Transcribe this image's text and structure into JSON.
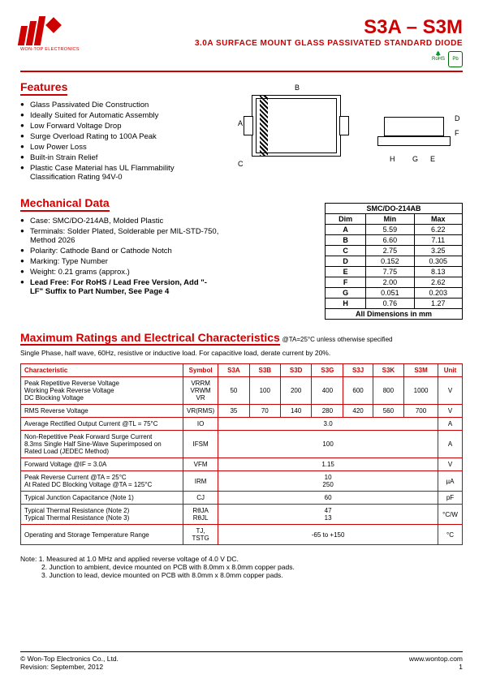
{
  "header": {
    "company": "WON-TOP ELECTRONICS",
    "title": "S3A – S3M",
    "subtitle": "3.0A SURFACE MOUNT GLASS PASSIVATED STANDARD DIODE",
    "rohs_label": "RoHS",
    "pb_label": "Pb"
  },
  "features": {
    "title": "Features",
    "items": [
      "Glass Passivated Die Construction",
      "Ideally Suited for Automatic Assembly",
      "Low Forward Voltage Drop",
      "Surge Overload Rating to 100A Peak",
      "Low Power Loss",
      "Built-in Strain Relief",
      "Plastic Case Material has UL Flammability Classification Rating 94V-0"
    ]
  },
  "mechanical": {
    "title": "Mechanical Data",
    "items": [
      "Case: SMC/DO-214AB, Molded Plastic",
      "Terminals: Solder Plated, Solderable per MIL-STD-750, Method 2026",
      "Polarity: Cathode Band or Cathode Notch",
      "Marking: Type Number",
      "Weight: 0.21 grams (approx.)"
    ],
    "lead_free": "Lead Free: For RoHS / Lead Free Version, Add \"-LF\" Suffix to Part Number, See Page 4"
  },
  "diagram": {
    "labels": {
      "A": "A",
      "B": "B",
      "C": "C",
      "D": "D",
      "E": "E",
      "F": "F",
      "G": "G",
      "H": "H"
    }
  },
  "dim_table": {
    "title": "SMC/DO-214AB",
    "header": [
      "Dim",
      "Min",
      "Max"
    ],
    "rows": [
      [
        "A",
        "5.59",
        "6.22"
      ],
      [
        "B",
        "6.60",
        "7.11"
      ],
      [
        "C",
        "2.75",
        "3.25"
      ],
      [
        "D",
        "0.152",
        "0.305"
      ],
      [
        "E",
        "7.75",
        "8.13"
      ],
      [
        "F",
        "2.00",
        "2.62"
      ],
      [
        "G",
        "0.051",
        "0.203"
      ],
      [
        "H",
        "0.76",
        "1.27"
      ]
    ],
    "footer": "All Dimensions in mm"
  },
  "ratings": {
    "title": "Maximum Ratings and Electrical Characteristics",
    "cond": "@TA=25°C unless otherwise specified",
    "sub": "Single Phase, half wave, 60Hz, resistive or inductive load. For capacitive load, derate current by 20%.",
    "columns": [
      "Characteristic",
      "Symbol",
      "S3A",
      "S3B",
      "S3D",
      "S3G",
      "S3J",
      "S3K",
      "S3M",
      "Unit"
    ],
    "rows": [
      {
        "char": "Peak Repetitive Reverse Voltage\nWorking Peak Reverse Voltage\nDC Blocking Voltage",
        "symbol": "VRRM\nVRWM\nVR",
        "vals": [
          "50",
          "100",
          "200",
          "400",
          "600",
          "800",
          "1000"
        ],
        "unit": "V"
      },
      {
        "char": "RMS Reverse Voltage",
        "symbol": "VR(RMS)",
        "vals": [
          "35",
          "70",
          "140",
          "280",
          "420",
          "560",
          "700"
        ],
        "unit": "V"
      },
      {
        "char": "Average Rectified Output Current          @TL = 75°C",
        "symbol": "IO",
        "span": "3.0",
        "unit": "A"
      },
      {
        "char": "Non-Repetitive Peak Forward Surge Current\n8.3ms Single Half Sine-Wave Superimposed on\nRated Load (JEDEC Method)",
        "symbol": "IFSM",
        "span": "100",
        "unit": "A"
      },
      {
        "char": "Forward Voltage                    @IF = 3.0A",
        "symbol": "VFM",
        "span": "1.15",
        "unit": "V"
      },
      {
        "char": "Peak Reverse Current                @TA = 25°C\nAt Rated DC Blocking Voltage          @TA = 125°C",
        "symbol": "IRM",
        "span": "10\n250",
        "unit": "µA"
      },
      {
        "char": "Typical Junction Capacitance (Note 1)",
        "symbol": "CJ",
        "span": "60",
        "unit": "pF"
      },
      {
        "char": "Typical Thermal Resistance (Note 2)\nTypical Thermal Resistance (Note 3)",
        "symbol": "RθJA\nRθJL",
        "span": "47\n13",
        "unit": "°C/W"
      },
      {
        "char": "Operating and Storage Temperature Range",
        "symbol": "TJ, TSTG",
        "span": "-65 to +150",
        "unit": "°C"
      }
    ]
  },
  "notes": {
    "label": "Note:",
    "items": [
      "1. Measured at 1.0 MHz and applied reverse voltage of 4.0 V DC.",
      "2. Junction to ambient, device mounted on PCB with 8.0mm x 8.0mm copper pads.",
      "3. Junction to lead, device mounted on PCB with 8.0mm x 8.0mm copper pads."
    ]
  },
  "footer": {
    "copyright": "© Won-Top Electronics Co., Ltd.",
    "revision": "Revision: September, 2012",
    "url": "www.wontop.com",
    "page": "1"
  },
  "colors": {
    "brand_red": "#c00",
    "green": "#060"
  }
}
